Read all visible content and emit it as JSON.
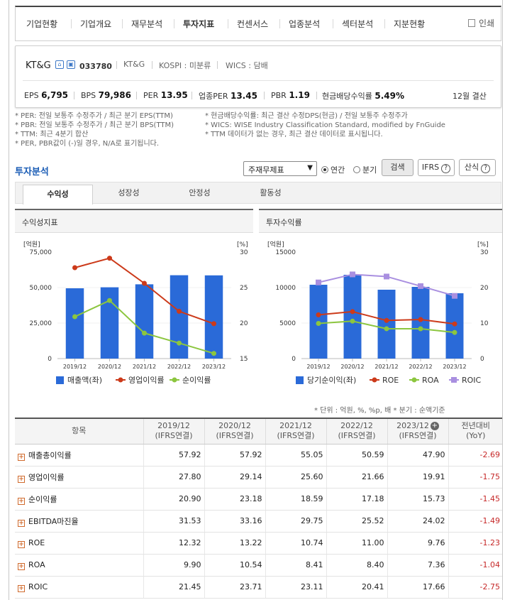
{
  "nav": {
    "items": [
      "기업현황",
      "기업개요",
      "재무분석",
      "투자지표",
      "컨센서스",
      "업종분석",
      "섹터분석",
      "지분현황"
    ],
    "active": "투자지표",
    "print_label": "인쇄"
  },
  "company": {
    "name": "KT&G",
    "code": "033780",
    "name2": "KT&G",
    "market": "KOSPI : 미분류",
    "wics": "WICS : 담배"
  },
  "metrics": {
    "eps_label": "EPS",
    "eps": "6,795",
    "bps_label": "BPS",
    "bps": "79,986",
    "per_label": "PER",
    "per": "13.95",
    "industry_per_label": "업종PER",
    "industry_per": "13.45",
    "pbr_label": "PBR",
    "pbr": "1.19",
    "div_label": "현금배당수익률",
    "div": "5.49%",
    "settle": "12월 결산"
  },
  "notes": {
    "left": [
      "* PER: 전일 보통주 수정주가 / 최근 분기 EPS(TTM)",
      "* PBR: 전일 보통주 수정주가 / 최근 분기 BPS(TTM)",
      "* TTM: 최근 4분기 합산",
      "* PER, PBR값이 (-)일 경우, N/A로 표기됩니다."
    ],
    "right": [
      "* 현금배당수익률: 최근 결산 수정DPS(현금) / 전일 보통주 수정주가",
      "* WICS: WISE Industry Classification Standard, modified by FnGuide",
      "* TTM 데이터가 없는 경우, 최근 결산 데이터로 표시됩니다."
    ]
  },
  "analysis": {
    "title": "투자분석",
    "select_value": "주재무제표",
    "radio_annual": "연간",
    "radio_quarter": "분기",
    "search_btn": "검색",
    "ifrs_btn": "IFRS",
    "calc_btn": "산식",
    "tabs": [
      "수익성",
      "성장성",
      "안정성",
      "활동성"
    ]
  },
  "chart1": {
    "title": "수익성지표",
    "left_unit": "[억원]",
    "right_unit": "[%]",
    "left_ticks": [
      "75,000",
      "50,000",
      "25,000",
      "0"
    ],
    "right_ticks": [
      "30",
      "25",
      "20",
      "15"
    ],
    "legend": [
      "매출액(좌)",
      "영업이익률",
      "순이익률"
    ]
  },
  "chart2": {
    "title": "투자수익률",
    "left_unit": "[억원]",
    "right_unit": "[%]",
    "left_ticks": [
      "15000",
      "10000",
      "5000",
      "0"
    ],
    "right_ticks": [
      "30",
      "20",
      "10",
      "0"
    ],
    "legend": [
      "당기순이익(좌)",
      "ROE",
      "ROA",
      "ROIC"
    ]
  },
  "chart_data": [
    {
      "type": "bar",
      "title": "수익성지표",
      "categories": [
        "2019/12",
        "2020/12",
        "2021/12",
        "2022/12",
        "2023/12"
      ],
      "series": [
        {
          "name": "매출액(좌)",
          "type": "bar",
          "axis": "left",
          "values": [
            49500,
            50200,
            52300,
            58700,
            58600
          ]
        },
        {
          "name": "영업이익률",
          "type": "line",
          "axis": "right",
          "values": [
            27.8,
            29.14,
            25.6,
            21.66,
            19.91
          ]
        },
        {
          "name": "순이익률",
          "type": "line",
          "axis": "right",
          "values": [
            20.9,
            23.18,
            18.59,
            17.18,
            15.73
          ]
        }
      ],
      "ylim_left": [
        0,
        75000
      ],
      "ylim_right": [
        15,
        30
      ],
      "colors": {
        "bar": "#2a6ad8",
        "op": "#cc3a1a",
        "net": "#8cc63f"
      },
      "legend_position": "bottom"
    },
    {
      "type": "bar",
      "title": "투자수익률",
      "categories": [
        "2019/12",
        "2020/12",
        "2021/12",
        "2022/12",
        "2023/12"
      ],
      "series": [
        {
          "name": "당기순이익(좌)",
          "type": "bar",
          "axis": "left",
          "values": [
            10400,
            11800,
            9700,
            10100,
            9200
          ]
        },
        {
          "name": "ROE",
          "type": "line",
          "axis": "right",
          "values": [
            12.32,
            13.22,
            10.74,
            11.0,
            9.76
          ]
        },
        {
          "name": "ROA",
          "type": "line",
          "axis": "right",
          "values": [
            9.9,
            10.54,
            8.41,
            8.4,
            7.36
          ]
        },
        {
          "name": "ROIC",
          "type": "line",
          "axis": "right",
          "values": [
            21.45,
            23.71,
            23.11,
            20.41,
            17.66
          ]
        }
      ],
      "ylim_left": [
        0,
        15000
      ],
      "ylim_right": [
        0,
        30
      ],
      "colors": {
        "bar": "#2a6ad8",
        "roe": "#cc3a1a",
        "roa": "#8cc63f",
        "roic": "#a98fe0"
      },
      "legend_position": "bottom"
    }
  ],
  "unit_note": "* 단위 : 억원, %, %p, 배     * 분기 : 순액기준",
  "table": {
    "headers": [
      "항목",
      "2019/12\n(IFRS연결)",
      "2020/12\n(IFRS연결)",
      "2021/12\n(IFRS연결)",
      "2022/12\n(IFRS연결)",
      "2023/12\n(IFRS연결)",
      "전년대비\n(YoY)"
    ],
    "rows": [
      [
        "매출총이익률",
        "57.92",
        "57.92",
        "55.05",
        "50.59",
        "47.90",
        "-2.69"
      ],
      [
        "영업이익률",
        "27.80",
        "29.14",
        "25.60",
        "21.66",
        "19.91",
        "-1.75"
      ],
      [
        "순이익률",
        "20.90",
        "23.18",
        "18.59",
        "17.18",
        "15.73",
        "-1.45"
      ],
      [
        "EBITDA마진율",
        "31.53",
        "33.16",
        "29.75",
        "25.52",
        "24.02",
        "-1.49"
      ],
      [
        "ROE",
        "12.32",
        "13.22",
        "10.74",
        "11.00",
        "9.76",
        "-1.23"
      ],
      [
        "ROA",
        "9.90",
        "10.54",
        "8.41",
        "8.40",
        "7.36",
        "-1.04"
      ],
      [
        "ROIC",
        "21.45",
        "23.71",
        "23.11",
        "20.41",
        "17.66",
        "-2.75"
      ]
    ]
  }
}
